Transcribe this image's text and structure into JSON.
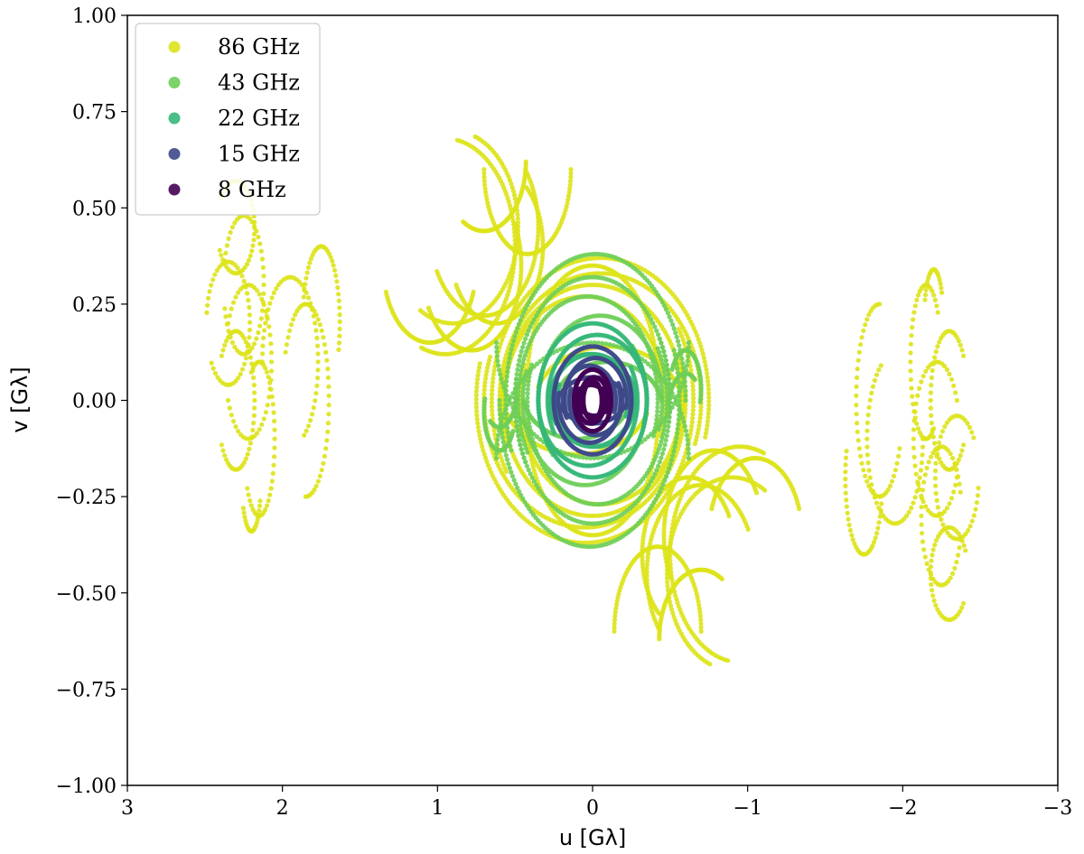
{
  "chart_data": {
    "type": "scatter",
    "title": "",
    "xlabel": "u [Gλ]",
    "ylabel": "v [Gλ]",
    "xlim": [
      3,
      -3
    ],
    "ylim": [
      -1.0,
      1.0
    ],
    "x_ticks": [
      3,
      2,
      1,
      0,
      -1,
      -2,
      -3
    ],
    "x_tick_labels": [
      "3",
      "2",
      "1",
      "0",
      "−1",
      "−2",
      "−3"
    ],
    "y_ticks": [
      -1.0,
      -0.75,
      -0.5,
      -0.25,
      0.0,
      0.25,
      0.5,
      0.75,
      1.0
    ],
    "y_tick_labels": [
      "−1.00",
      "−0.75",
      "−0.50",
      "−0.25",
      "0.00",
      "0.25",
      "0.50",
      "0.75",
      "1.00"
    ],
    "grid": false,
    "legend_position": "top-left",
    "note_symmetry": "uv coverage is point-symmetric: each track (u, v) also plotted at (−u, −v)",
    "series": [
      {
        "name": "86 GHz",
        "color": "#dde318",
        "tracks": [
          {
            "cu": 0.05,
            "cv": 0.0,
            "ru": 0.65,
            "rv": 0.33,
            "a0": 160,
            "a1": 380,
            "n": 130
          },
          {
            "cu": 0.05,
            "cv": 0.0,
            "ru": 0.7,
            "rv": 0.37,
            "a0": 150,
            "a1": 375,
            "n": 140
          },
          {
            "cu": 0.0,
            "cv": 0.0,
            "ru": 0.58,
            "rv": 0.3,
            "a0": 165,
            "a1": 375,
            "n": 120
          },
          {
            "cu": -0.05,
            "cv": 0.0,
            "ru": 0.52,
            "rv": 0.27,
            "a0": 160,
            "a1": 380,
            "n": 110
          },
          {
            "cu": 0.0,
            "cv": 0.05,
            "ru": 0.42,
            "rv": 0.3,
            "a0": 0,
            "a1": 180,
            "n": 90
          },
          {
            "cu": 0.1,
            "cv": 0.02,
            "ru": 0.48,
            "rv": 0.16,
            "a0": 200,
            "a1": 340,
            "n": 70
          },
          {
            "cu": 0.42,
            "cv": 0.6,
            "ru": 0.28,
            "rv": 0.22,
            "a0": 180,
            "a1": 360,
            "n": 70
          },
          {
            "cu": 0.7,
            "cv": 0.62,
            "ru": 0.27,
            "rv": 0.18,
            "a0": 180,
            "a1": 300,
            "n": 60
          },
          {
            "cu": 0.62,
            "cv": 0.4,
            "ru": 0.3,
            "rv": 0.2,
            "a0": 130,
            "a1": 330,
            "n": 80
          },
          {
            "cu": 0.7,
            "cv": 0.45,
            "ru": 0.35,
            "rv": 0.23,
            "a0": 140,
            "a1": 330,
            "n": 80
          },
          {
            "cu": 0.78,
            "cv": 0.35,
            "ru": 0.32,
            "rv": 0.22,
            "a0": 150,
            "a1": 330,
            "n": 80
          },
          {
            "cu": 0.9,
            "cv": 0.45,
            "ru": 0.42,
            "rv": 0.25,
            "a0": 110,
            "a1": 300,
            "n": 80
          },
          {
            "cu": 0.95,
            "cv": 0.4,
            "ru": 0.45,
            "rv": 0.28,
            "a0": 100,
            "a1": 290,
            "n": 90
          },
          {
            "cu": 1.05,
            "cv": 0.35,
            "ru": 0.3,
            "rv": 0.2,
            "a0": 200,
            "a1": 340,
            "n": 60
          },
          {
            "cu": 2.3,
            "cv": 0.45,
            "ru": 0.12,
            "rv": 0.12,
            "a0": 40,
            "a1": 330,
            "n": 40
          },
          {
            "cu": 2.25,
            "cv": 0.3,
            "ru": 0.13,
            "rv": 0.18,
            "a0": 20,
            "a1": 340,
            "n": 45
          },
          {
            "cu": 2.35,
            "cv": 0.2,
            "ru": 0.14,
            "rv": 0.16,
            "a0": 10,
            "a1": 320,
            "n": 45
          },
          {
            "cu": 2.22,
            "cv": 0.1,
            "ru": 0.15,
            "rv": 0.2,
            "a0": 30,
            "a1": 330,
            "n": 45
          },
          {
            "cu": 2.3,
            "cv": 0.0,
            "ru": 0.12,
            "rv": 0.18,
            "a0": 40,
            "a1": 320,
            "n": 45
          },
          {
            "cu": 2.15,
            "cv": -0.1,
            "ru": 0.1,
            "rv": 0.2,
            "a0": 60,
            "a1": 320,
            "n": 40
          },
          {
            "cu": 2.2,
            "cv": -0.22,
            "ru": 0.06,
            "rv": 0.12,
            "a0": 200,
            "a1": 330,
            "n": 20
          },
          {
            "cu": 1.95,
            "cv": 0.1,
            "ru": 0.18,
            "rv": 0.22,
            "a0": 0,
            "a1": 240,
            "n": 45
          },
          {
            "cu": 1.85,
            "cv": 0.0,
            "ru": 0.15,
            "rv": 0.25,
            "a0": 30,
            "a1": 270,
            "n": 45
          },
          {
            "cu": 1.75,
            "cv": 0.2,
            "ru": 0.12,
            "rv": 0.2,
            "a0": 20,
            "a1": 200,
            "n": 35
          }
        ]
      },
      {
        "name": "43 GHz",
        "color": "#6ece58",
        "tracks": [
          {
            "cu": 0.02,
            "cv": 0.0,
            "ru": 0.58,
            "rv": 0.38,
            "a0": 160,
            "a1": 360,
            "n": 110
          },
          {
            "cu": 0.0,
            "cv": 0.0,
            "ru": 0.5,
            "rv": 0.32,
            "a0": 150,
            "a1": 370,
            "n": 100
          },
          {
            "cu": -0.03,
            "cv": 0.0,
            "ru": 0.45,
            "rv": 0.27,
            "a0": 150,
            "a1": 380,
            "n": 100
          },
          {
            "cu": 0.05,
            "cv": 0.0,
            "ru": 0.4,
            "rv": 0.22,
            "a0": 140,
            "a1": 380,
            "n": 100
          },
          {
            "cu": 0.0,
            "cv": 0.15,
            "ru": 0.62,
            "rv": 0.3,
            "a0": 180,
            "a1": 360,
            "n": 80
          },
          {
            "cu": 0.1,
            "cv": 0.02,
            "ru": 0.35,
            "rv": 0.12,
            "a0": 190,
            "a1": 350,
            "n": 70
          },
          {
            "cu": 0.6,
            "cv": -0.03,
            "ru": 0.1,
            "rv": 0.1,
            "a0": 210,
            "a1": 380,
            "n": 40
          },
          {
            "cu": 0.6,
            "cv": 0.05,
            "ru": 0.12,
            "rv": 0.12,
            "a0": 200,
            "a1": 300,
            "n": 30
          }
        ]
      },
      {
        "name": "22 GHz",
        "color": "#35b779",
        "tracks": [
          {
            "cu": 0.0,
            "cv": 0.0,
            "ru": 0.35,
            "rv": 0.2,
            "a0": 160,
            "a1": 380,
            "n": 100
          },
          {
            "cu": 0.03,
            "cv": 0.0,
            "ru": 0.32,
            "rv": 0.17,
            "a0": 150,
            "a1": 380,
            "n": 100
          },
          {
            "cu": 0.0,
            "cv": 0.02,
            "ru": 0.28,
            "rv": 0.14,
            "a0": 170,
            "a1": 370,
            "n": 90
          },
          {
            "cu": -0.02,
            "cv": 0.0,
            "ru": 0.25,
            "rv": 0.12,
            "a0": 150,
            "a1": 380,
            "n": 90
          }
        ]
      },
      {
        "name": "15 GHz",
        "color": "#3e4989",
        "tracks": [
          {
            "cu": 0.0,
            "cv": 0.0,
            "ru": 0.25,
            "rv": 0.14,
            "a0": 150,
            "a1": 380,
            "n": 90
          },
          {
            "cu": 0.02,
            "cv": 0.0,
            "ru": 0.2,
            "rv": 0.11,
            "a0": 160,
            "a1": 370,
            "n": 80
          },
          {
            "cu": -0.02,
            "cv": 0.0,
            "ru": 0.17,
            "rv": 0.09,
            "a0": 150,
            "a1": 380,
            "n": 80
          },
          {
            "cu": 0.0,
            "cv": 0.01,
            "ru": 0.22,
            "rv": 0.07,
            "a0": 200,
            "a1": 340,
            "n": 60
          }
        ]
      },
      {
        "name": "8 GHz",
        "color": "#440154",
        "tracks": [
          {
            "cu": 0.0,
            "cv": 0.0,
            "ru": 0.12,
            "rv": 0.08,
            "a0": 140,
            "a1": 400,
            "n": 80
          },
          {
            "cu": 0.01,
            "cv": 0.0,
            "ru": 0.09,
            "rv": 0.06,
            "a0": 150,
            "a1": 390,
            "n": 70
          },
          {
            "cu": 0.0,
            "cv": 0.0,
            "ru": 0.06,
            "rv": 0.05,
            "a0": 0,
            "a1": 360,
            "n": 60
          },
          {
            "cu": -0.01,
            "cv": 0.0,
            "ru": 0.1,
            "rv": 0.04,
            "a0": 180,
            "a1": 360,
            "n": 50
          }
        ]
      }
    ]
  },
  "legend": {
    "items": [
      {
        "label": "86 GHz",
        "color": "#dde318"
      },
      {
        "label": "43 GHz",
        "color": "#6ece58"
      },
      {
        "label": "22 GHz",
        "color": "#35b779"
      },
      {
        "label": "15 GHz",
        "color": "#3e4989"
      },
      {
        "label": "8 GHz",
        "color": "#440154"
      }
    ]
  }
}
